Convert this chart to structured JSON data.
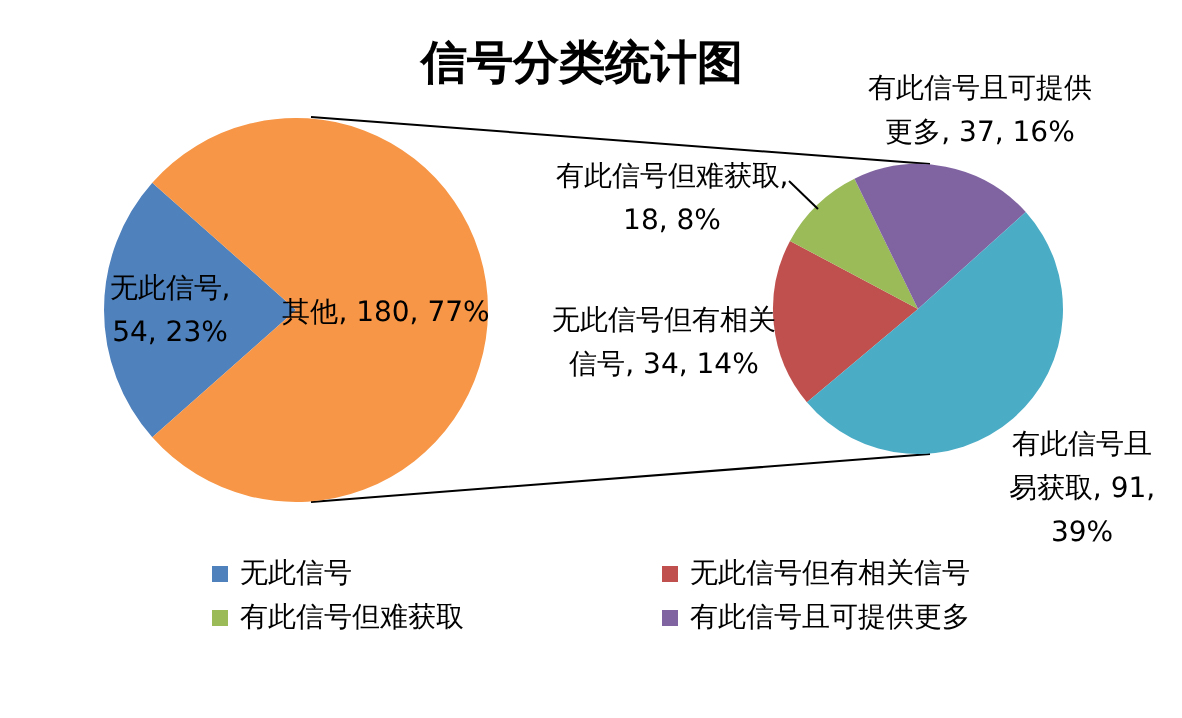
{
  "chart_data": [
    {
      "type": "pie",
      "title": "信号分类统计图",
      "categories": [
        "无此信号",
        null
      ],
      "values": [
        54,
        180
      ],
      "colors": [
        "#4f81bd",
        "#f79646"
      ],
      "value_labels": [
        "无此信号, 54, 23%",
        "其他, 180, 77%"
      ],
      "legend": "bottom"
    },
    {
      "type": "pie",
      "categories": [
        "无此信号但有相关信号",
        "有此信号但难获取",
        "有此信号且可提供更多",
        null
      ],
      "values": [
        34,
        18,
        37,
        91
      ],
      "colors": [
        "#c0504d",
        "#9bbb59",
        "#8064a2",
        "#4bacc6"
      ],
      "value_labels": [
        "无此信号但有相关信号, 34, 14%",
        "有此信号但难获取, 18, 8%",
        "有此信号且可提供更多, 37, 16%",
        "有此信号且易获取, 91, 39%"
      ],
      "legend": "bottom"
    }
  ]
}
